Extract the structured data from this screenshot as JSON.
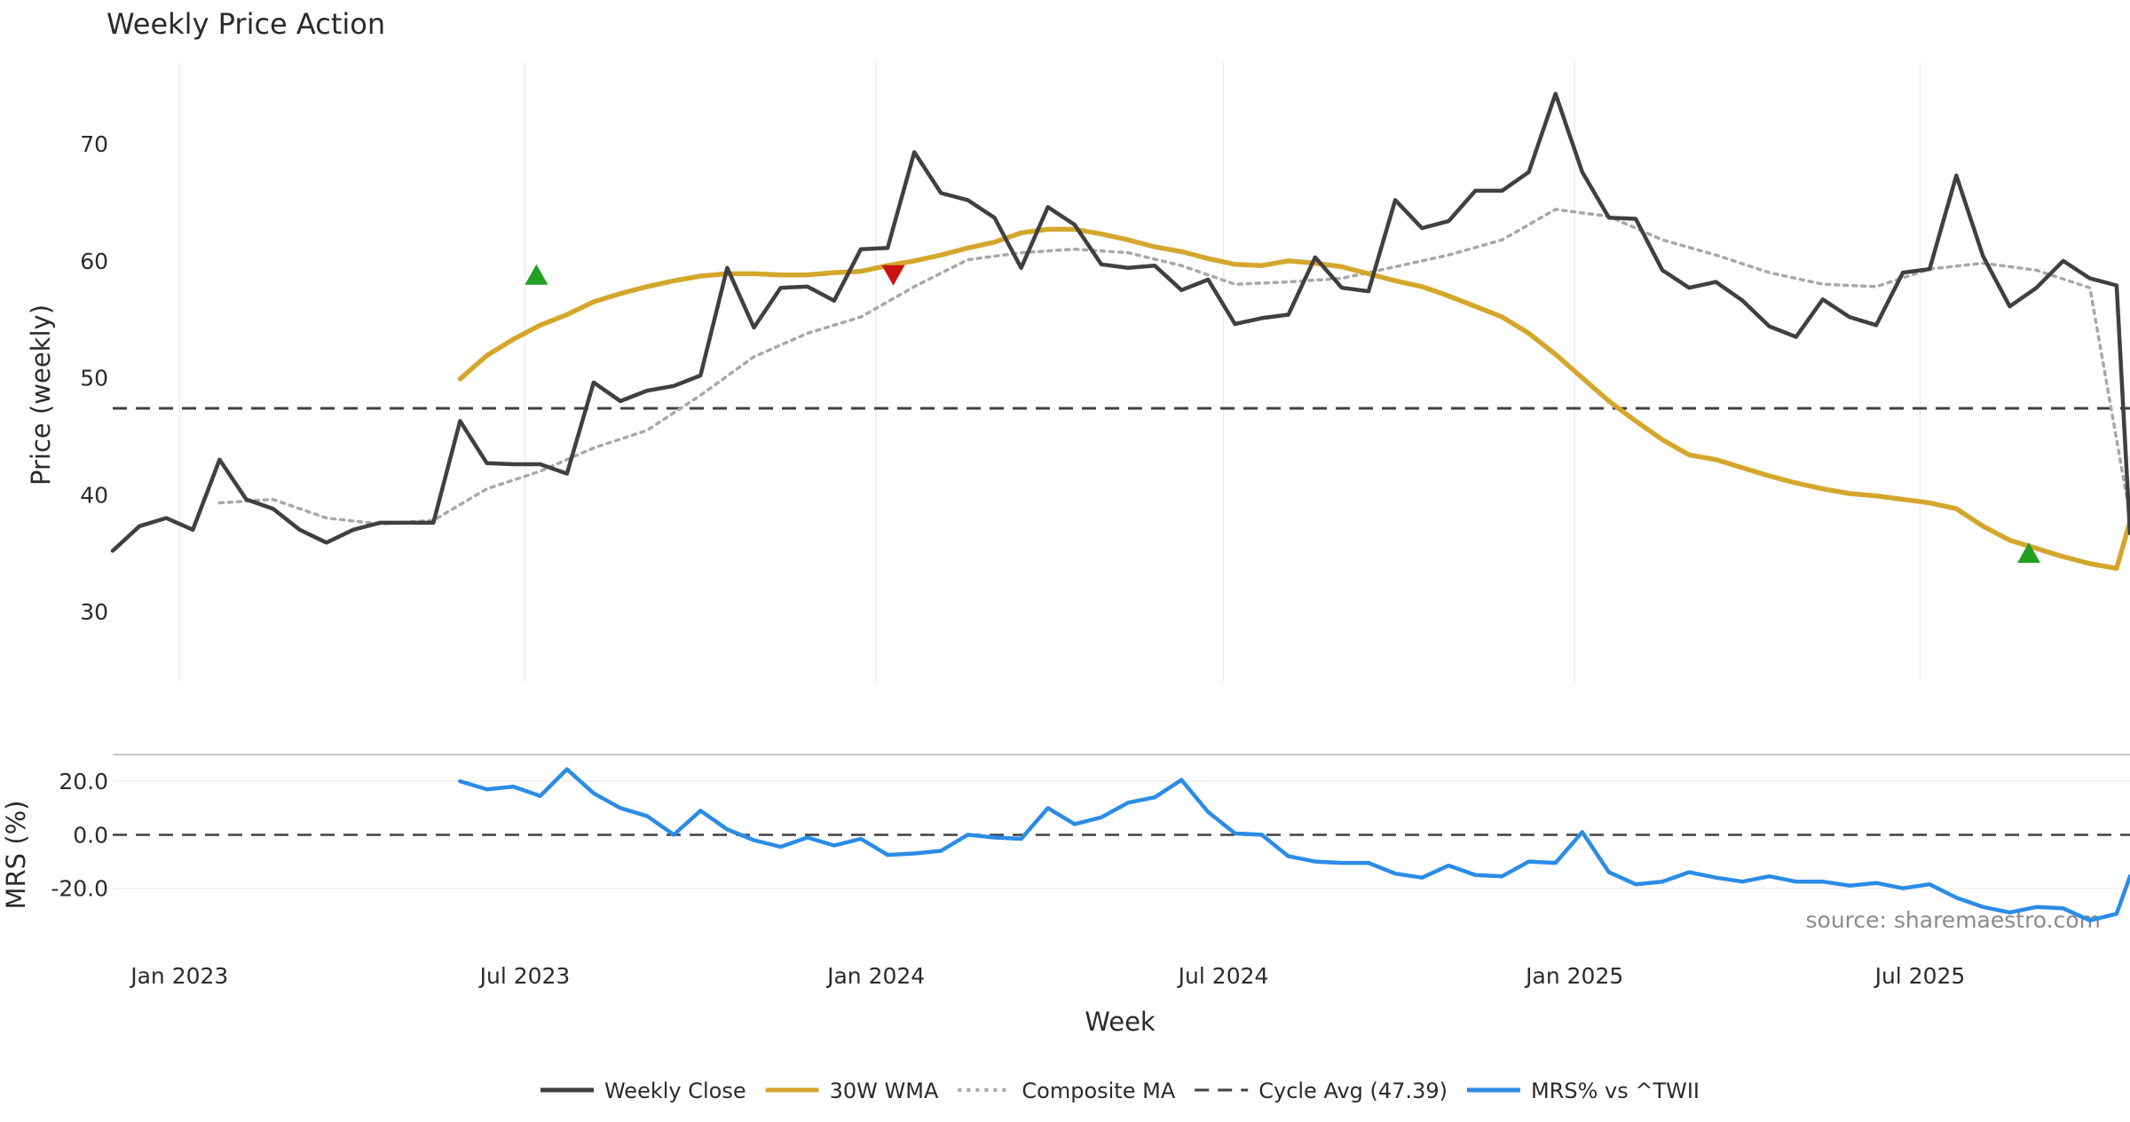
{
  "chart_data": {
    "type": "line",
    "title": "Weekly Price Action",
    "source_note": "source: sharemaestro.com",
    "price_panel": {
      "ylabel": "Price (weekly)",
      "ylim": [
        24,
        77
      ],
      "yticks": [
        30,
        40,
        50,
        60,
        70
      ],
      "cycle_avg": 47.39
    },
    "mrs_panel": {
      "ylabel": "MRS (%)",
      "ylim": [
        -38,
        30
      ],
      "yticks": [
        20.0,
        0.0,
        -20.0
      ],
      "ytick_labels": [
        "20.0",
        "0.0",
        "-20.0"
      ],
      "zero_line": 0
    },
    "x_axis": {
      "xlabel": "Week",
      "start_date": "2022-11-27",
      "end_date": "2025-10-19",
      "ticks": [
        {
          "date": "2023-01-01",
          "label": "Jan 2023"
        },
        {
          "date": "2023-07-01",
          "label": "Jul 2023"
        },
        {
          "date": "2024-01-01",
          "label": "Jan 2024"
        },
        {
          "date": "2024-07-01",
          "label": "Jul 2024"
        },
        {
          "date": "2025-01-01",
          "label": "Jan 2025"
        },
        {
          "date": "2025-07-01",
          "label": "Jul 2025"
        }
      ]
    },
    "legend": {
      "placement": "bottom-center",
      "items": [
        {
          "label": "Weekly Close",
          "color": "#404040",
          "style": "solid"
        },
        {
          "label": "30W WMA",
          "color": "#d4a72c",
          "style": "solid"
        },
        {
          "label": "Composite MA",
          "color": "#a8a8a8",
          "style": "dotted"
        },
        {
          "label": "Cycle Avg (47.39)",
          "color": "#404040",
          "style": "dashed"
        },
        {
          "label": "MRS% vs ^TWII",
          "color": "#2b8ce6",
          "style": "solid"
        }
      ]
    },
    "series": [
      {
        "name": "Weekly Close",
        "color": "#404040",
        "points": [
          [
            "2022-11-27",
            35.2
          ],
          [
            "2022-12-11",
            37.3
          ],
          [
            "2022-12-25",
            38.0
          ],
          [
            "2023-01-08",
            37.0
          ],
          [
            "2023-01-22",
            43.0
          ],
          [
            "2023-02-05",
            39.6
          ],
          [
            "2023-02-19",
            38.8
          ],
          [
            "2023-03-05",
            37.0
          ],
          [
            "2023-03-19",
            35.9
          ],
          [
            "2023-04-02",
            37.0
          ],
          [
            "2023-04-16",
            37.6
          ],
          [
            "2023-04-30",
            37.6
          ],
          [
            "2023-05-14",
            37.6
          ],
          [
            "2023-05-28",
            46.3
          ],
          [
            "2023-06-11",
            42.7
          ],
          [
            "2023-06-25",
            42.6
          ],
          [
            "2023-07-09",
            42.6
          ],
          [
            "2023-07-23",
            41.8
          ],
          [
            "2023-08-06",
            49.6
          ],
          [
            "2023-08-20",
            48.0
          ],
          [
            "2023-09-03",
            48.9
          ],
          [
            "2023-09-17",
            49.3
          ],
          [
            "2023-10-01",
            50.2
          ],
          [
            "2023-10-15",
            59.4
          ],
          [
            "2023-10-29",
            54.3
          ],
          [
            "2023-11-12",
            57.7
          ],
          [
            "2023-11-26",
            57.8
          ],
          [
            "2023-12-10",
            56.6
          ],
          [
            "2023-12-24",
            61.0
          ],
          [
            "2024-01-07",
            61.1
          ],
          [
            "2024-01-21",
            69.3
          ],
          [
            "2024-02-04",
            65.8
          ],
          [
            "2024-02-18",
            65.2
          ],
          [
            "2024-03-03",
            63.7
          ],
          [
            "2024-03-17",
            59.4
          ],
          [
            "2024-03-31",
            64.6
          ],
          [
            "2024-04-14",
            63.1
          ],
          [
            "2024-04-28",
            59.7
          ],
          [
            "2024-05-12",
            59.4
          ],
          [
            "2024-05-26",
            59.6
          ],
          [
            "2024-06-09",
            57.5
          ],
          [
            "2024-06-23",
            58.4
          ],
          [
            "2024-07-07",
            54.6
          ],
          [
            "2024-07-21",
            55.1
          ],
          [
            "2024-08-04",
            55.4
          ],
          [
            "2024-08-18",
            60.3
          ],
          [
            "2024-09-01",
            57.7
          ],
          [
            "2024-09-15",
            57.4
          ],
          [
            "2024-09-29",
            65.2
          ],
          [
            "2024-10-13",
            62.8
          ],
          [
            "2024-10-27",
            63.4
          ],
          [
            "2024-11-10",
            66.0
          ],
          [
            "2024-11-24",
            66.0
          ],
          [
            "2024-12-08",
            67.6
          ],
          [
            "2024-12-22",
            74.3
          ],
          [
            "2025-01-05",
            67.6
          ],
          [
            "2025-01-19",
            63.7
          ],
          [
            "2025-02-02",
            63.6
          ],
          [
            "2025-02-16",
            59.2
          ],
          [
            "2025-03-02",
            57.7
          ],
          [
            "2025-03-16",
            58.2
          ],
          [
            "2025-03-30",
            56.6
          ],
          [
            "2025-04-13",
            54.4
          ],
          [
            "2025-04-27",
            53.5
          ],
          [
            "2025-05-11",
            56.7
          ],
          [
            "2025-05-25",
            55.2
          ],
          [
            "2025-06-08",
            54.5
          ],
          [
            "2025-06-22",
            59.0
          ],
          [
            "2025-07-06",
            59.3
          ],
          [
            "2025-07-20",
            67.3
          ],
          [
            "2025-08-03",
            60.4
          ],
          [
            "2025-08-17",
            56.1
          ],
          [
            "2025-08-31",
            57.7
          ],
          [
            "2025-09-14",
            60.0
          ],
          [
            "2025-09-28",
            58.5
          ],
          [
            "2025-10-12",
            57.9
          ],
          [
            "2025-10-19",
            36.7
          ]
        ]
      },
      {
        "name": "30W WMA",
        "color": "#d4a72c",
        "points": [
          [
            "2023-05-28",
            49.9
          ],
          [
            "2023-06-11",
            51.9
          ],
          [
            "2023-06-25",
            53.3
          ],
          [
            "2023-07-09",
            54.5
          ],
          [
            "2023-07-23",
            55.4
          ],
          [
            "2023-08-06",
            56.5
          ],
          [
            "2023-08-20",
            57.2
          ],
          [
            "2023-09-03",
            57.8
          ],
          [
            "2023-09-17",
            58.3
          ],
          [
            "2023-10-01",
            58.7
          ],
          [
            "2023-10-15",
            58.9
          ],
          [
            "2023-10-29",
            58.9
          ],
          [
            "2023-11-12",
            58.8
          ],
          [
            "2023-11-26",
            58.8
          ],
          [
            "2023-12-10",
            59.0
          ],
          [
            "2023-12-24",
            59.1
          ],
          [
            "2024-01-07",
            59.6
          ],
          [
            "2024-01-21",
            60.0
          ],
          [
            "2024-02-04",
            60.5
          ],
          [
            "2024-02-18",
            61.1
          ],
          [
            "2024-03-03",
            61.6
          ],
          [
            "2024-03-17",
            62.4
          ],
          [
            "2024-03-31",
            62.7
          ],
          [
            "2024-04-14",
            62.7
          ],
          [
            "2024-04-28",
            62.3
          ],
          [
            "2024-05-12",
            61.8
          ],
          [
            "2024-05-26",
            61.2
          ],
          [
            "2024-06-09",
            60.8
          ],
          [
            "2024-06-23",
            60.2
          ],
          [
            "2024-07-07",
            59.7
          ],
          [
            "2024-07-21",
            59.6
          ],
          [
            "2024-08-04",
            60.0
          ],
          [
            "2024-08-18",
            59.8
          ],
          [
            "2024-09-01",
            59.5
          ],
          [
            "2024-09-15",
            58.9
          ],
          [
            "2024-09-29",
            58.3
          ],
          [
            "2024-10-13",
            57.8
          ],
          [
            "2024-10-27",
            57.0
          ],
          [
            "2024-11-10",
            56.1
          ],
          [
            "2024-11-24",
            55.2
          ],
          [
            "2024-12-08",
            53.8
          ],
          [
            "2024-12-22",
            52.0
          ],
          [
            "2025-01-05",
            50.0
          ],
          [
            "2025-01-19",
            48.0
          ],
          [
            "2025-02-02",
            46.3
          ],
          [
            "2025-02-16",
            44.7
          ],
          [
            "2025-03-02",
            43.4
          ],
          [
            "2025-03-16",
            43.0
          ],
          [
            "2025-03-30",
            42.3
          ],
          [
            "2025-04-13",
            41.6
          ],
          [
            "2025-04-27",
            41.0
          ],
          [
            "2025-05-11",
            40.5
          ],
          [
            "2025-05-25",
            40.1
          ],
          [
            "2025-06-08",
            39.9
          ],
          [
            "2025-06-22",
            39.6
          ],
          [
            "2025-07-06",
            39.3
          ],
          [
            "2025-07-20",
            38.8
          ],
          [
            "2025-08-03",
            37.3
          ],
          [
            "2025-08-17",
            36.1
          ],
          [
            "2025-08-31",
            35.4
          ],
          [
            "2025-09-14",
            34.7
          ],
          [
            "2025-09-28",
            34.1
          ],
          [
            "2025-10-12",
            33.7
          ],
          [
            "2025-10-19",
            37.7
          ]
        ]
      },
      {
        "name": "Composite MA",
        "color": "#a8a8a8",
        "points": [
          [
            "2023-01-22",
            39.3
          ],
          [
            "2023-02-19",
            39.6
          ],
          [
            "2023-03-19",
            38.0
          ],
          [
            "2023-04-16",
            37.5
          ],
          [
            "2023-05-14",
            37.8
          ],
          [
            "2023-06-11",
            40.5
          ],
          [
            "2023-07-09",
            42.0
          ],
          [
            "2023-08-06",
            44.0
          ],
          [
            "2023-09-03",
            45.5
          ],
          [
            "2023-10-01",
            48.5
          ],
          [
            "2023-10-29",
            51.8
          ],
          [
            "2023-11-26",
            53.8
          ],
          [
            "2023-12-24",
            55.2
          ],
          [
            "2024-01-21",
            57.8
          ],
          [
            "2024-02-18",
            60.1
          ],
          [
            "2024-03-17",
            60.7
          ],
          [
            "2024-04-14",
            61.0
          ],
          [
            "2024-05-12",
            60.7
          ],
          [
            "2024-06-09",
            59.6
          ],
          [
            "2024-07-07",
            58.0
          ],
          [
            "2024-08-04",
            58.2
          ],
          [
            "2024-09-01",
            58.5
          ],
          [
            "2024-09-29",
            59.5
          ],
          [
            "2024-10-27",
            60.5
          ],
          [
            "2024-11-24",
            61.8
          ],
          [
            "2024-12-22",
            64.4
          ],
          [
            "2025-01-19",
            63.8
          ],
          [
            "2025-02-16",
            61.8
          ],
          [
            "2025-03-16",
            60.5
          ],
          [
            "2025-04-13",
            59.0
          ],
          [
            "2025-05-11",
            58.0
          ],
          [
            "2025-06-08",
            57.8
          ],
          [
            "2025-07-06",
            59.3
          ],
          [
            "2025-08-03",
            59.8
          ],
          [
            "2025-08-31",
            59.2
          ],
          [
            "2025-09-28",
            57.7
          ],
          [
            "2025-10-19",
            38.2
          ]
        ]
      },
      {
        "name": "MRS% vs ^TWII",
        "color": "#2b8ce6",
        "points": [
          [
            "2023-05-28",
            20.0
          ],
          [
            "2023-06-11",
            17.0
          ],
          [
            "2023-06-25",
            18.0
          ],
          [
            "2023-07-09",
            14.5
          ],
          [
            "2023-07-23",
            24.5
          ],
          [
            "2023-08-06",
            15.5
          ],
          [
            "2023-08-20",
            10.0
          ],
          [
            "2023-09-03",
            7.0
          ],
          [
            "2023-09-17",
            0.0
          ],
          [
            "2023-10-01",
            9.0
          ],
          [
            "2023-10-15",
            2.0
          ],
          [
            "2023-10-29",
            -2.0
          ],
          [
            "2023-11-12",
            -4.5
          ],
          [
            "2023-11-26",
            -1.0
          ],
          [
            "2023-12-10",
            -4.0
          ],
          [
            "2023-12-24",
            -1.5
          ],
          [
            "2024-01-07",
            -7.5
          ],
          [
            "2024-01-21",
            -7.0
          ],
          [
            "2024-02-04",
            -6.0
          ],
          [
            "2024-02-18",
            0.0
          ],
          [
            "2024-03-03",
            -1.0
          ],
          [
            "2024-03-17",
            -1.5
          ],
          [
            "2024-03-31",
            10.0
          ],
          [
            "2024-04-14",
            4.0
          ],
          [
            "2024-04-28",
            6.5
          ],
          [
            "2024-05-12",
            12.0
          ],
          [
            "2024-05-26",
            14.0
          ],
          [
            "2024-06-09",
            20.5
          ],
          [
            "2024-06-23",
            8.5
          ],
          [
            "2024-07-07",
            0.5
          ],
          [
            "2024-07-21",
            0.0
          ],
          [
            "2024-08-04",
            -8.0
          ],
          [
            "2024-08-18",
            -10.0
          ],
          [
            "2024-09-01",
            -10.5
          ],
          [
            "2024-09-15",
            -10.5
          ],
          [
            "2024-09-29",
            -14.5
          ],
          [
            "2024-10-13",
            -16.0
          ],
          [
            "2024-10-27",
            -11.5
          ],
          [
            "2024-11-10",
            -15.0
          ],
          [
            "2024-11-24",
            -15.5
          ],
          [
            "2024-12-08",
            -10.0
          ],
          [
            "2024-12-22",
            -10.5
          ],
          [
            "2025-01-05",
            1.0
          ],
          [
            "2025-01-19",
            -14.0
          ],
          [
            "2025-02-02",
            -18.5
          ],
          [
            "2025-02-16",
            -17.5
          ],
          [
            "2025-03-02",
            -14.0
          ],
          [
            "2025-03-16",
            -16.0
          ],
          [
            "2025-03-30",
            -17.5
          ],
          [
            "2025-04-13",
            -15.5
          ],
          [
            "2025-04-27",
            -17.5
          ],
          [
            "2025-05-11",
            -17.5
          ],
          [
            "2025-05-25",
            -19.0
          ],
          [
            "2025-06-08",
            -18.0
          ],
          [
            "2025-06-22",
            -20.0
          ],
          [
            "2025-07-06",
            -18.5
          ],
          [
            "2025-07-20",
            -23.5
          ],
          [
            "2025-08-03",
            -27.0
          ],
          [
            "2025-08-17",
            -29.0
          ],
          [
            "2025-08-31",
            -27.0
          ],
          [
            "2025-09-14",
            -27.5
          ],
          [
            "2025-09-28",
            -32.0
          ],
          [
            "2025-10-12",
            -29.5
          ],
          [
            "2025-10-19",
            -15.5
          ]
        ]
      }
    ],
    "signals": [
      {
        "type": "buy",
        "date": "2023-07-07",
        "value": 58.8,
        "color": "#22a022"
      },
      {
        "type": "sell",
        "date": "2024-01-10",
        "value": 58.8,
        "color": "#cc1111"
      },
      {
        "type": "buy",
        "date": "2025-08-27",
        "value": 35.0,
        "color": "#22a022"
      }
    ]
  }
}
